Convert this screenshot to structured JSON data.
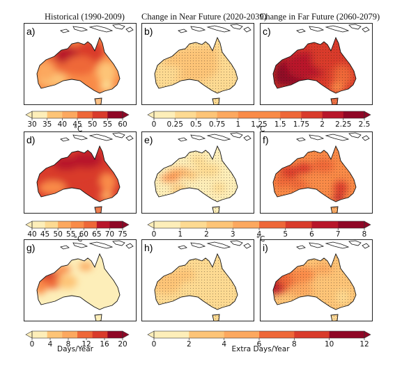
{
  "columns": [
    {
      "title": "Historical (1990-2009)"
    },
    {
      "title": "Change in Near Future (2020-2039)"
    },
    {
      "title": "Change in Far Future (2060-2079)"
    }
  ],
  "panels": [
    {
      "label": "a)",
      "row": 0,
      "col": 0,
      "scheme": "hist_temp",
      "stipple": false
    },
    {
      "label": "b)",
      "row": 0,
      "col": 1,
      "scheme": "near_small",
      "stipple": true
    },
    {
      "label": "c)",
      "row": 0,
      "col": 2,
      "scheme": "far_large",
      "stipple": true
    },
    {
      "label": "d)",
      "row": 1,
      "col": 0,
      "scheme": "hist_hot",
      "stipple": false
    },
    {
      "label": "e)",
      "row": 1,
      "col": 1,
      "scheme": "near_patchy",
      "stipple": true
    },
    {
      "label": "f)",
      "row": 1,
      "col": 2,
      "scheme": "far_patchy",
      "stipple": true
    },
    {
      "label": "g)",
      "row": 2,
      "col": 0,
      "scheme": "hist_days",
      "stipple": false
    },
    {
      "label": "h)",
      "row": 2,
      "col": 1,
      "scheme": "near_days",
      "stipple": true
    },
    {
      "label": "i)",
      "row": 2,
      "col": 2,
      "scheme": "far_days",
      "stipple": true
    }
  ],
  "colorbars": [
    {
      "id": "row1-hist",
      "ticks": [
        "30",
        "35",
        "40",
        "45",
        "50",
        "55",
        "60"
      ],
      "unit": "°C"
    },
    {
      "id": "row1-change",
      "ticks": [
        "0",
        "0.25",
        "0.5",
        "0.75",
        "1",
        "1.25",
        "1.5",
        "1.75",
        "2",
        "2.25",
        "2.5"
      ],
      "unit": "°C"
    },
    {
      "id": "row2-hist",
      "ticks": [
        "40",
        "45",
        "50",
        "55",
        "60",
        "65",
        "70",
        "75"
      ],
      "unit": "°C"
    },
    {
      "id": "row2-change",
      "ticks": [
        "0",
        "1",
        "2",
        "3",
        "4",
        "5",
        "6",
        "7",
        "8"
      ],
      "unit": "°C"
    },
    {
      "id": "row3-hist",
      "ticks": [
        "0",
        "4",
        "8",
        "12",
        "16",
        "20"
      ],
      "unit": "Days/Year"
    },
    {
      "id": "row3-change",
      "ticks": [
        "0",
        "2",
        "4",
        "6",
        "8",
        "10",
        "12"
      ],
      "unit": "Extra Days/Year"
    }
  ],
  "colors": {
    "ramp": [
      "#fdeeb9",
      "#fdda92",
      "#fdc477",
      "#fca85f",
      "#f98b48",
      "#ee6738",
      "#d93b2b",
      "#b8162a",
      "#8f0726"
    ],
    "ocean": "#ffffff",
    "coast": "#111111",
    "stipple": "#2a1a10"
  }
}
